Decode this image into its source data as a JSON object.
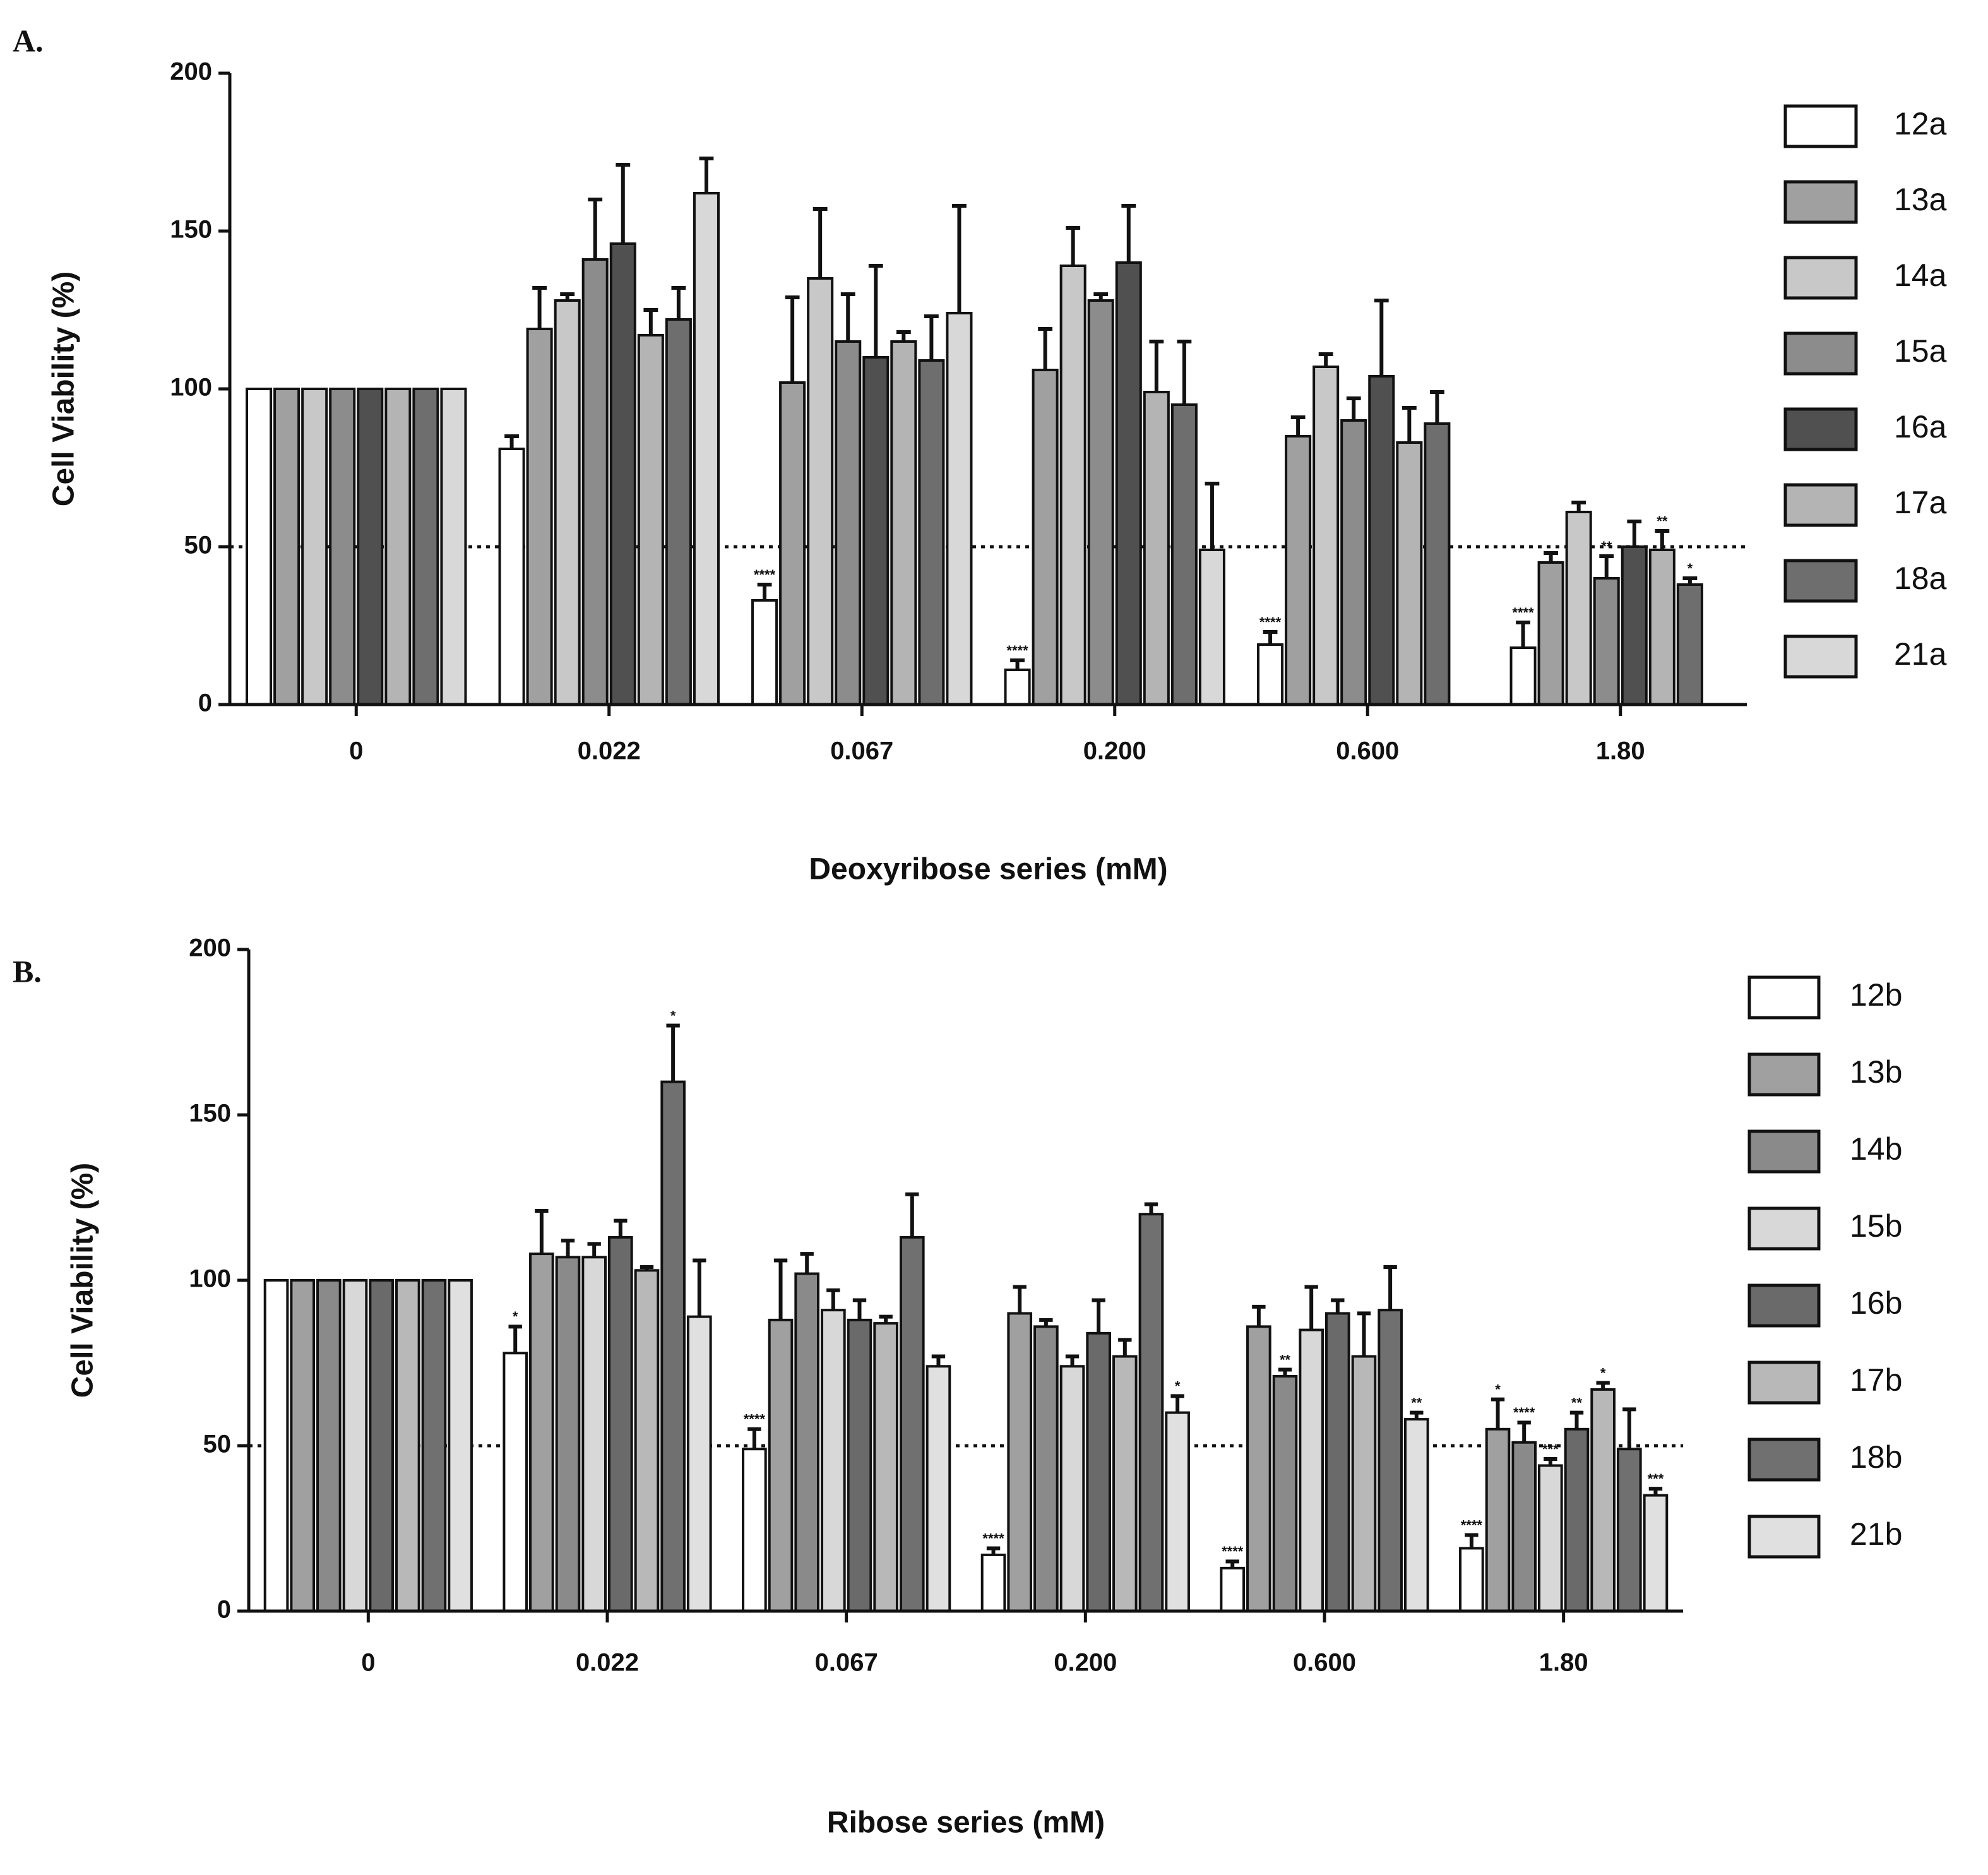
{
  "chart_data": [
    {
      "type": "bar",
      "panel": "A.",
      "xlabel": "Deoxyribose series (mM)",
      "ylabel": "Cell Viability (%)",
      "categories": [
        "0",
        "0.022",
        "0.067",
        "0.200",
        "0.600",
        "1.80"
      ],
      "ylim": [
        0,
        200
      ],
      "yticks": [
        0,
        50,
        100,
        150,
        200
      ],
      "reference_line": 50,
      "series": [
        {
          "name": "12a",
          "color": "#ffffff",
          "values": [
            100,
            81,
            33,
            11,
            19,
            18
          ],
          "errors": [
            0,
            4,
            5,
            3,
            4,
            8
          ]
        },
        {
          "name": "13a",
          "color": "#a0a0a0",
          "values": [
            100,
            119,
            102,
            106,
            85,
            45
          ],
          "errors": [
            0,
            13,
            27,
            13,
            6,
            3
          ]
        },
        {
          "name": "14a",
          "color": "#c8c8c8",
          "values": [
            100,
            128,
            135,
            139,
            107,
            61
          ],
          "errors": [
            0,
            2,
            22,
            12,
            4,
            3
          ]
        },
        {
          "name": "15a",
          "color": "#8c8c8c",
          "values": [
            100,
            141,
            115,
            128,
            90,
            40
          ],
          "errors": [
            0,
            19,
            15,
            2,
            7,
            7
          ]
        },
        {
          "name": "16a",
          "color": "#505050",
          "values": [
            100,
            146,
            110,
            140,
            104,
            50
          ],
          "errors": [
            0,
            25,
            29,
            18,
            24,
            8
          ]
        },
        {
          "name": "17a",
          "color": "#b4b4b4",
          "values": [
            100,
            117,
            115,
            99,
            83,
            49
          ],
          "errors": [
            0,
            8,
            3,
            16,
            11,
            6
          ]
        },
        {
          "name": "18a",
          "color": "#6e6e6e",
          "values": [
            100,
            122,
            109,
            95,
            89,
            38
          ],
          "errors": [
            0,
            10,
            14,
            20,
            10,
            2
          ]
        },
        {
          "name": "21a",
          "color": "#d8d8d8",
          "values": [
            100,
            162,
            124,
            49,
            null,
            null
          ],
          "errors": [
            0,
            11,
            34,
            21,
            null,
            null
          ]
        }
      ],
      "annotations": [
        {
          "text": "****",
          "series": 0,
          "category": 2
        },
        {
          "text": "****",
          "series": 0,
          "category": 3
        },
        {
          "text": "****",
          "series": 0,
          "category": 4
        },
        {
          "text": "****",
          "series": 0,
          "category": 5
        },
        {
          "text": "**",
          "series": 3,
          "category": 5
        },
        {
          "text": "**",
          "series": 5,
          "category": 5
        },
        {
          "text": "*",
          "series": 6,
          "category": 5
        }
      ]
    },
    {
      "type": "bar",
      "panel": "B.",
      "xlabel": "Ribose series (mM)",
      "ylabel": "Cell Viability (%)",
      "categories": [
        "0",
        "0.022",
        "0.067",
        "0.200",
        "0.600",
        "1.80"
      ],
      "ylim": [
        0,
        200
      ],
      "yticks": [
        0,
        50,
        100,
        150,
        200
      ],
      "reference_line": 50,
      "series": [
        {
          "name": "12b",
          "color": "#ffffff",
          "values": [
            100,
            78,
            49,
            17,
            13,
            19
          ],
          "errors": [
            0,
            8,
            6,
            2,
            2,
            4
          ]
        },
        {
          "name": "13b",
          "color": "#a0a0a0",
          "values": [
            100,
            108,
            88,
            90,
            86,
            55
          ],
          "errors": [
            0,
            13,
            18,
            8,
            6,
            9
          ]
        },
        {
          "name": "14b",
          "color": "#8a8a8a",
          "values": [
            100,
            107,
            102,
            86,
            71,
            51
          ],
          "errors": [
            0,
            5,
            6,
            2,
            2,
            6
          ]
        },
        {
          "name": "15b",
          "color": "#d8d8d8",
          "values": [
            100,
            107,
            91,
            74,
            85,
            44
          ],
          "errors": [
            0,
            4,
            6,
            3,
            13,
            2
          ]
        },
        {
          "name": "16b",
          "color": "#6a6a6a",
          "values": [
            100,
            113,
            88,
            84,
            90,
            55
          ],
          "errors": [
            0,
            5,
            6,
            10,
            4,
            5
          ]
        },
        {
          "name": "17b",
          "color": "#b8b8b8",
          "values": [
            100,
            103,
            87,
            77,
            77,
            67
          ],
          "errors": [
            0,
            1,
            2,
            5,
            13,
            2
          ]
        },
        {
          "name": "18b",
          "color": "#707070",
          "values": [
            100,
            160,
            113,
            120,
            91,
            49
          ],
          "errors": [
            0,
            17,
            13,
            3,
            13,
            12
          ]
        },
        {
          "name": "21b",
          "color": "#e0e0e0",
          "values": [
            100,
            89,
            74,
            60,
            58,
            35
          ],
          "errors": [
            0,
            17,
            3,
            5,
            2,
            2
          ]
        }
      ],
      "annotations": [
        {
          "text": "*",
          "series": 0,
          "category": 1
        },
        {
          "text": "*",
          "series": 6,
          "category": 1
        },
        {
          "text": "****",
          "series": 0,
          "category": 2
        },
        {
          "text": "****",
          "series": 0,
          "category": 3
        },
        {
          "text": "*",
          "series": 7,
          "category": 3
        },
        {
          "text": "****",
          "series": 0,
          "category": 4
        },
        {
          "text": "**",
          "series": 2,
          "category": 4
        },
        {
          "text": "**",
          "series": 7,
          "category": 4
        },
        {
          "text": "****",
          "series": 0,
          "category": 5
        },
        {
          "text": "*",
          "series": 1,
          "category": 5
        },
        {
          "text": "****",
          "series": 2,
          "category": 5
        },
        {
          "text": "***",
          "series": 3,
          "category": 5
        },
        {
          "text": "**",
          "series": 4,
          "category": 5
        },
        {
          "text": "*",
          "series": 5,
          "category": 5
        },
        {
          "text": "***",
          "series": 7,
          "category": 5
        }
      ]
    }
  ]
}
